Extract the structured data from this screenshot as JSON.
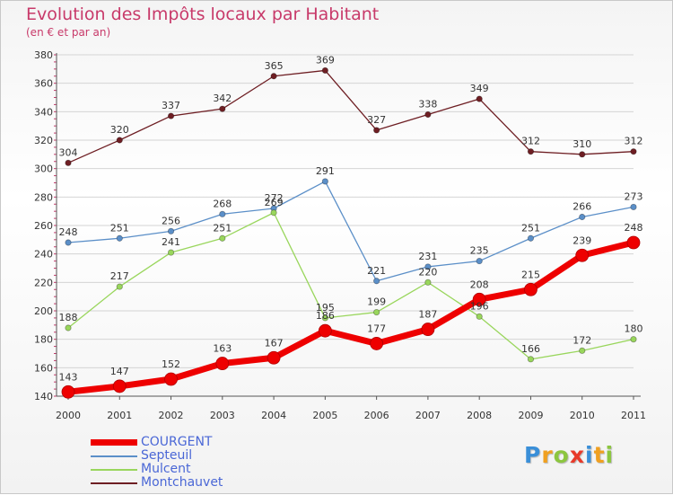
{
  "chart_data": {
    "type": "line",
    "title": "Evolution des Impôts locaux par Habitant",
    "subtitle": "(en € et par an)",
    "xlabel": "",
    "ylabel": "",
    "ylim": [
      140,
      380
    ],
    "yticks": [
      140,
      160,
      180,
      200,
      220,
      240,
      260,
      280,
      300,
      320,
      340,
      360,
      380
    ],
    "categories": [
      "2000",
      "2001",
      "2002",
      "2003",
      "2004",
      "2005",
      "2006",
      "2007",
      "2008",
      "2009",
      "2010",
      "2011"
    ],
    "grid": true,
    "legend": "bottom-left",
    "series": [
      {
        "name": "Montchauvet",
        "color": "#6e1e23",
        "values": [
          304,
          320,
          337,
          342,
          365,
          369,
          327,
          338,
          349,
          312,
          310,
          312
        ]
      },
      {
        "name": "Septeuil",
        "color": "#5b8fc8",
        "values": [
          248,
          251,
          256,
          268,
          272,
          291,
          221,
          231,
          235,
          251,
          266,
          273
        ]
      },
      {
        "name": "Mulcent",
        "color": "#99d65c",
        "values": [
          188,
          217,
          241,
          251,
          269,
          195,
          199,
          220,
          196,
          166,
          172,
          180
        ]
      },
      {
        "name": "COURGENT",
        "color": "#ee0000",
        "values": [
          143,
          147,
          152,
          163,
          167,
          186,
          177,
          187,
          208,
          215,
          239,
          248
        ]
      }
    ]
  },
  "legend_order": [
    "COURGENT",
    "Septeuil",
    "Mulcent",
    "Montchauvet"
  ],
  "logo": {
    "letters": [
      "P",
      "r",
      "o",
      "x",
      "i",
      "t",
      "i"
    ],
    "colors": [
      "#3a8fd8",
      "#f0a020",
      "#8cc63f",
      "#e83a2a",
      "#3a8fd8",
      "#f0a020",
      "#8cc63f"
    ]
  }
}
